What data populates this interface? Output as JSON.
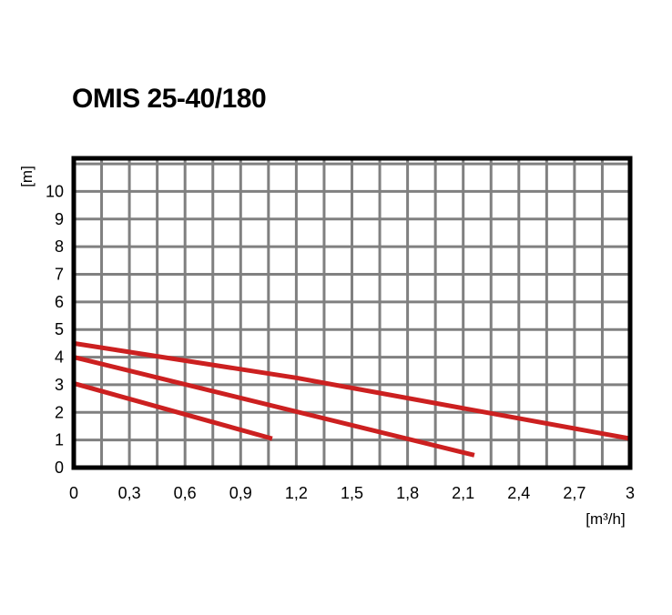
{
  "chart_data": {
    "type": "line",
    "title": "OMIS 25-40/180",
    "xlabel": "[m³/h]",
    "ylabel": "[m]",
    "xlim": [
      0,
      3
    ],
    "ylim": [
      0,
      11.2
    ],
    "x_ticks": [
      {
        "value": 0,
        "label": "0"
      },
      {
        "value": 0.3,
        "label": "0,3"
      },
      {
        "value": 0.6,
        "label": "0,6"
      },
      {
        "value": 0.9,
        "label": "0,9"
      },
      {
        "value": 1.2,
        "label": "1,2"
      },
      {
        "value": 1.5,
        "label": "1,5"
      },
      {
        "value": 1.8,
        "label": "1,8"
      },
      {
        "value": 2.1,
        "label": "2,1"
      },
      {
        "value": 2.4,
        "label": "2,4"
      },
      {
        "value": 2.7,
        "label": "2,7"
      },
      {
        "value": 3,
        "label": "3"
      }
    ],
    "y_ticks": [
      {
        "value": 0,
        "label": "0"
      },
      {
        "value": 1,
        "label": "1"
      },
      {
        "value": 2,
        "label": "2"
      },
      {
        "value": 3,
        "label": "3"
      },
      {
        "value": 4,
        "label": "4"
      },
      {
        "value": 5,
        "label": "5"
      },
      {
        "value": 6,
        "label": "6"
      },
      {
        "value": 7,
        "label": "7"
      },
      {
        "value": 8,
        "label": "8"
      },
      {
        "value": 9,
        "label": "9"
      },
      {
        "value": 10,
        "label": "10"
      }
    ],
    "grid": true,
    "grid_step_x": 0.15,
    "grid_step_y": 1,
    "line_color": "#cc2020",
    "grid_color": "#808080",
    "series": [
      {
        "x": [
          0,
          1.07
        ],
        "y": [
          3.05,
          1.05
        ]
      },
      {
        "x": [
          0,
          2.16
        ],
        "y": [
          4.0,
          0.45
        ]
      },
      {
        "x": [
          0,
          1.2,
          3.0
        ],
        "y": [
          4.5,
          3.25,
          1.05
        ]
      }
    ]
  }
}
